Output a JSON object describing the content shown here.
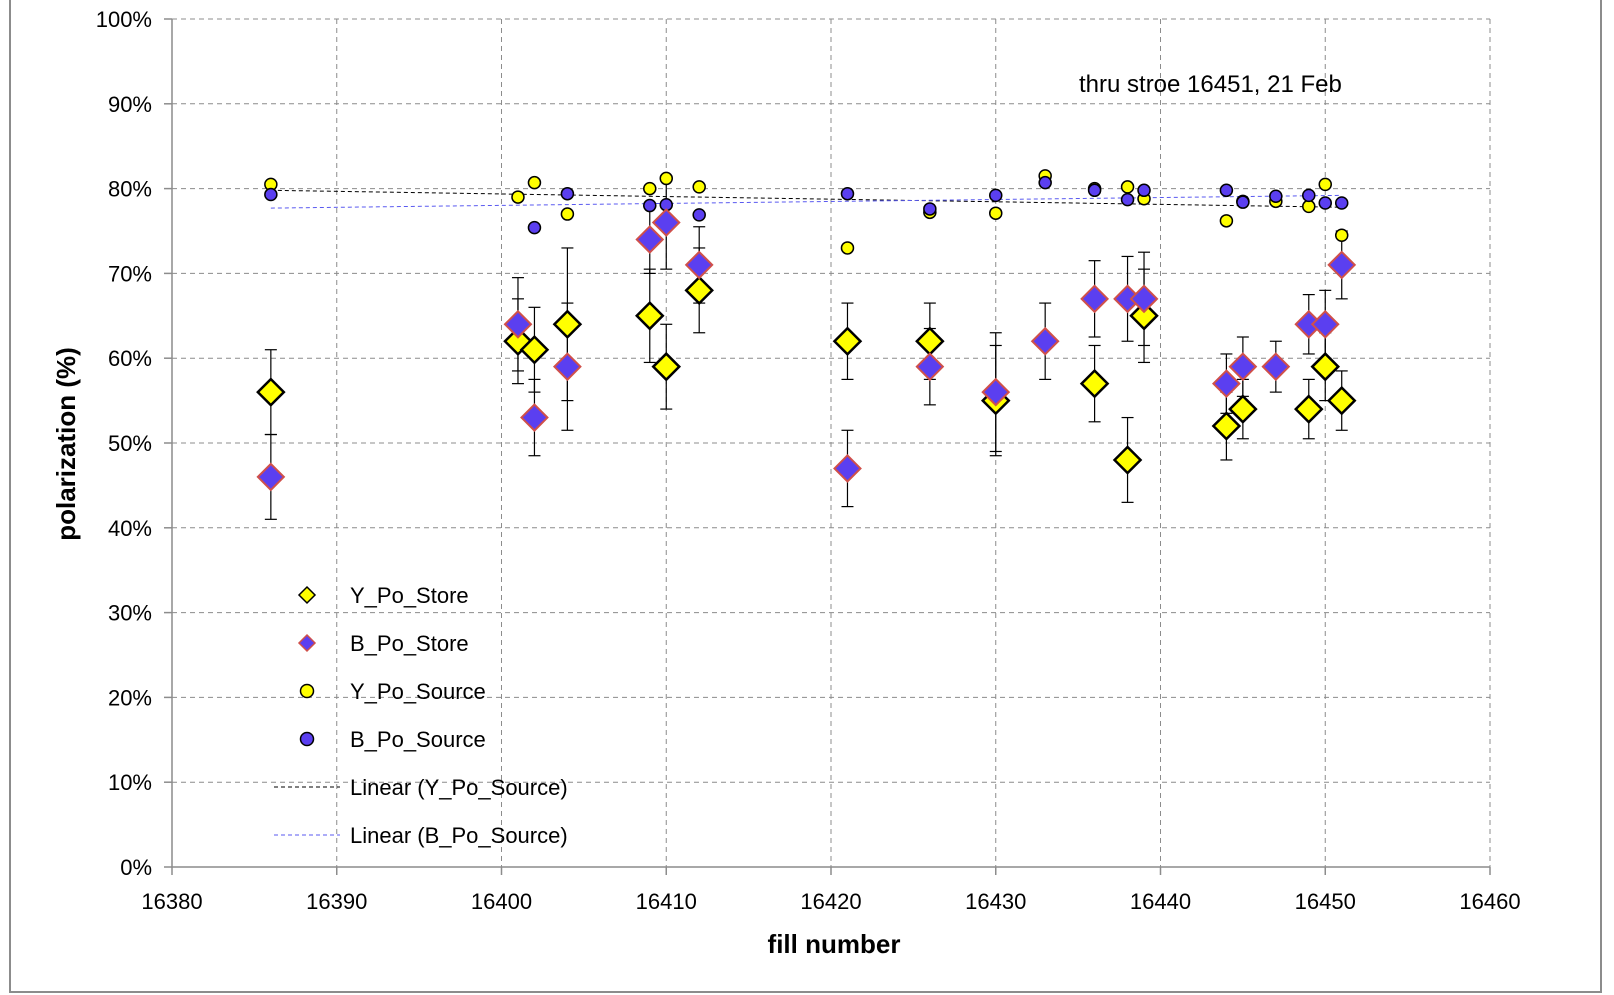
{
  "chart_data": {
    "type": "scatter",
    "title": "",
    "xlabel": "fill number",
    "ylabel": "polarization (%)",
    "xlim": [
      16380,
      16460
    ],
    "ylim": [
      0,
      100
    ],
    "x_ticks": [
      16380,
      16390,
      16400,
      16410,
      16420,
      16430,
      16440,
      16450,
      16460
    ],
    "y_ticks": [
      0,
      10,
      20,
      30,
      40,
      50,
      60,
      70,
      80,
      90,
      100
    ],
    "y_tick_labels": [
      "0%",
      "10%",
      "20%",
      "30%",
      "40%",
      "50%",
      "60%",
      "70%",
      "80%",
      "90%",
      "100%"
    ],
    "grid": true,
    "annotation": "thru stroe 16451, 21 Feb",
    "legend_position": "lower-left",
    "colors": {
      "yellow_fill": "#ffff00",
      "blue_fill": "#5b3ff0",
      "yellow_store_edge": "#000000",
      "blue_store_edge": "#d0504a",
      "y_trend": "#000000",
      "b_trend": "#5a5af0"
    },
    "series": [
      {
        "name": "Y_Po_Store",
        "marker": "diamond-large",
        "points": [
          {
            "x": 16386,
            "y": 56,
            "err": 5
          },
          {
            "x": 16401,
            "y": 62,
            "err": 5
          },
          {
            "x": 16402,
            "y": 61,
            "err": 5
          },
          {
            "x": 16404,
            "y": 64,
            "err": 9
          },
          {
            "x": 16409,
            "y": 65,
            "err": 5.5
          },
          {
            "x": 16410,
            "y": 59,
            "err": 5
          },
          {
            "x": 16412,
            "y": 68,
            "err": 5
          },
          {
            "x": 16421,
            "y": 62,
            "err": 4.5
          },
          {
            "x": 16426,
            "y": 62,
            "err": 4.5
          },
          {
            "x": 16430,
            "y": 55,
            "err": 6.5
          },
          {
            "x": 16436,
            "y": 57,
            "err": 4.5
          },
          {
            "x": 16438,
            "y": 48,
            "err": 5
          },
          {
            "x": 16439,
            "y": 65,
            "err": 5.5
          },
          {
            "x": 16444,
            "y": 52,
            "err": 4
          },
          {
            "x": 16445,
            "y": 54,
            "err": 3.5
          },
          {
            "x": 16449,
            "y": 54,
            "err": 3.5
          },
          {
            "x": 16450,
            "y": 59,
            "err": 4
          },
          {
            "x": 16451,
            "y": 55,
            "err": 3.5
          }
        ]
      },
      {
        "name": "B_Po_Store",
        "marker": "diamond",
        "points": [
          {
            "x": 16386,
            "y": 46,
            "err": 5
          },
          {
            "x": 16401,
            "y": 64,
            "err": 5.5
          },
          {
            "x": 16402,
            "y": 53,
            "err": 4.5
          },
          {
            "x": 16404,
            "y": 59,
            "err": 7.5
          },
          {
            "x": 16409,
            "y": 74,
            "err": 4
          },
          {
            "x": 16410,
            "y": 76,
            "err": 5.5
          },
          {
            "x": 16412,
            "y": 71,
            "err": 4.5
          },
          {
            "x": 16421,
            "y": 47,
            "err": 4.5
          },
          {
            "x": 16426,
            "y": 59,
            "err": 4.5
          },
          {
            "x": 16430,
            "y": 56,
            "err": 7
          },
          {
            "x": 16433,
            "y": 62,
            "err": 4.5
          },
          {
            "x": 16436,
            "y": 67,
            "err": 4.5
          },
          {
            "x": 16438,
            "y": 67,
            "err": 5
          },
          {
            "x": 16439,
            "y": 67,
            "err": 5.5
          },
          {
            "x": 16444,
            "y": 57,
            "err": 3.5
          },
          {
            "x": 16445,
            "y": 59,
            "err": 3.5
          },
          {
            "x": 16447,
            "y": 59,
            "err": 3
          },
          {
            "x": 16449,
            "y": 64,
            "err": 3.5
          },
          {
            "x": 16450,
            "y": 64,
            "err": 4
          },
          {
            "x": 16451,
            "y": 71,
            "err": 4
          }
        ]
      },
      {
        "name": "Y_Po_Source",
        "marker": "circle",
        "points": [
          {
            "x": 16386,
            "y": 80.5
          },
          {
            "x": 16401,
            "y": 79
          },
          {
            "x": 16402,
            "y": 80.7
          },
          {
            "x": 16404,
            "y": 77
          },
          {
            "x": 16409,
            "y": 80
          },
          {
            "x": 16410,
            "y": 81.2
          },
          {
            "x": 16412,
            "y": 80.2
          },
          {
            "x": 16421,
            "y": 73
          },
          {
            "x": 16426,
            "y": 77.2
          },
          {
            "x": 16430,
            "y": 77.1
          },
          {
            "x": 16433,
            "y": 81.5
          },
          {
            "x": 16436,
            "y": 80
          },
          {
            "x": 16438,
            "y": 80.2
          },
          {
            "x": 16439,
            "y": 78.8
          },
          {
            "x": 16444,
            "y": 76.2
          },
          {
            "x": 16445,
            "y": 78.5
          },
          {
            "x": 16447,
            "y": 78.5
          },
          {
            "x": 16449,
            "y": 77.9
          },
          {
            "x": 16450,
            "y": 80.5
          },
          {
            "x": 16451,
            "y": 74.5
          }
        ]
      },
      {
        "name": "B_Po_Source",
        "marker": "circle",
        "points": [
          {
            "x": 16386,
            "y": 79.3
          },
          {
            "x": 16402,
            "y": 75.4
          },
          {
            "x": 16404,
            "y": 79.4
          },
          {
            "x": 16409,
            "y": 78
          },
          {
            "x": 16410,
            "y": 78.1
          },
          {
            "x": 16412,
            "y": 76.9
          },
          {
            "x": 16421,
            "y": 79.4
          },
          {
            "x": 16426,
            "y": 77.6
          },
          {
            "x": 16430,
            "y": 79.2
          },
          {
            "x": 16433,
            "y": 80.7
          },
          {
            "x": 16436,
            "y": 79.8
          },
          {
            "x": 16438,
            "y": 78.7
          },
          {
            "x": 16439,
            "y": 79.8
          },
          {
            "x": 16444,
            "y": 79.8
          },
          {
            "x": 16445,
            "y": 78.4
          },
          {
            "x": 16447,
            "y": 79.1
          },
          {
            "x": 16449,
            "y": 79.2
          },
          {
            "x": 16450,
            "y": 78.3
          },
          {
            "x": 16451,
            "y": 78.3
          }
        ]
      },
      {
        "name": "Linear (Y_Po_Source)",
        "type": "trendline",
        "points": [
          {
            "x": 16386,
            "y": 79.8
          },
          {
            "x": 16451,
            "y": 77.8
          }
        ]
      },
      {
        "name": "Linear (B_Po_Source)",
        "type": "trendline",
        "points": [
          {
            "x": 16386,
            "y": 77.7
          },
          {
            "x": 16451,
            "y": 79.2
          }
        ]
      }
    ]
  }
}
